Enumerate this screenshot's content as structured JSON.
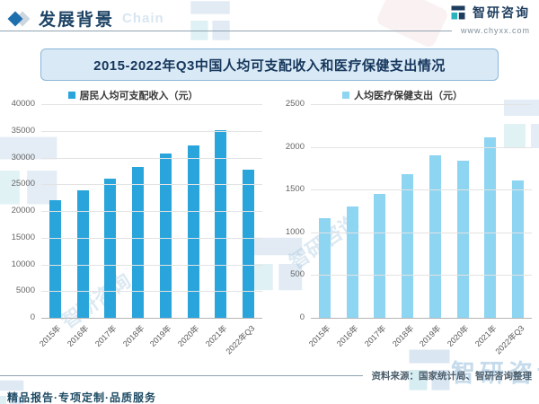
{
  "header": {
    "section_title": "发展背景",
    "watermark_word": "Chain",
    "brand": {
      "name": "智研咨询",
      "website": "www.chyxx.com"
    }
  },
  "banner": {
    "title": "2015-2022年Q3中国人均可支配收入和医疗保健支出情况"
  },
  "colors": {
    "logo_navy": "#1d3c5e",
    "logo_teal": "#2ab3bc",
    "watermark_navy": "#cbdcec",
    "watermark_teal": "#c5e6ec",
    "banner_bg": "#d9eaf6",
    "income_bar": "#2aa5db",
    "health_bar": "#8ed5f2"
  },
  "chart_data": [
    {
      "type": "bar",
      "legend": "居民人均可支配收入（元）",
      "categories": [
        "2015年",
        "2016年",
        "2017年",
        "2018年",
        "2019年",
        "2020年",
        "2021年",
        "2022年Q3"
      ],
      "values": [
        21966,
        23821,
        25974,
        28228,
        30733,
        32189,
        35128,
        27650
      ],
      "ylim": [
        0,
        40000
      ],
      "yticks": [
        0,
        5000,
        10000,
        15000,
        20000,
        25000,
        30000,
        35000,
        40000
      ],
      "bar_color": "#2aa5db",
      "grid": true,
      "legend_position": "top",
      "xlabel": "",
      "ylabel": ""
    },
    {
      "type": "bar",
      "legend": "人均医疗保健支出（元）",
      "categories": [
        "2015年",
        "2016年",
        "2017年",
        "2018年",
        "2019年",
        "2020年",
        "2021年",
        "2022年Q3"
      ],
      "values": [
        1166,
        1307,
        1451,
        1685,
        1902,
        1843,
        2115,
        1606
      ],
      "ylim": [
        0,
        2500
      ],
      "yticks": [
        0,
        500,
        1000,
        1500,
        2000,
        2500
      ],
      "bar_color": "#8ed5f2",
      "grid": true,
      "legend_position": "top",
      "xlabel": "",
      "ylabel": ""
    }
  ],
  "footer": {
    "source": "资料来源：国家统计局、智研咨询整理",
    "services": "精品报告·专项定制·品质服务"
  },
  "watermarks": {
    "brand_text": "智研咨询"
  }
}
